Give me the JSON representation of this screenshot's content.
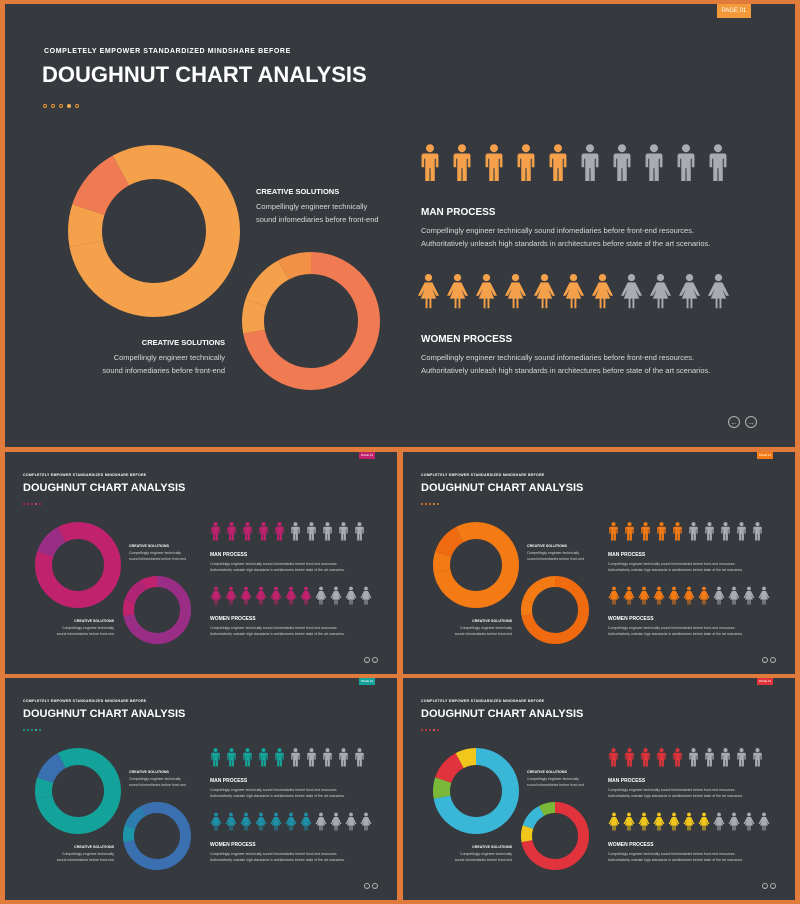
{
  "slides": [
    {
      "kind": "main",
      "page_tag": "PAGE 01",
      "kicker": "COMPLETELY  EMPOWER  STANDARDIZED  MINDSHARE  BEFORE",
      "title": "DOUGHNUT CHART ANALYSIS",
      "colors": {
        "tag": "#f49a3b",
        "dots": [
          "#e8943a",
          "#e8943a",
          "#e8943a",
          "#f2b05a",
          "#e8943a"
        ],
        "men": "#f5a04a",
        "women": "#f5a04a",
        "inactive": "#a8abb0",
        "donut1": [
          "#f5a04a",
          "#f5a04a",
          "#f07a52",
          "#f5a04a"
        ],
        "donut2": [
          "#f07a52",
          "#f5a04a",
          "#f5a04a",
          "#f29046"
        ]
      },
      "label1": {
        "heading": "CREATIVE SOLUTIONS",
        "line1": "Compellingly engineer technically",
        "line2": "sound infomediaries before front-end"
      },
      "label2": {
        "heading": "CREATIVE SOLUTIONS",
        "line1": "Compellingly engineer technically",
        "line2": "sound infomediaries before front-end"
      },
      "man": {
        "heading": "MAN PROCESS",
        "line1": "Compellingly engineer technically sound infomediaries before front-end  resources.",
        "line2": "Authoritatively unleash high standards in architectures before state of the art scenarios.",
        "active": 5,
        "total": 10
      },
      "women": {
        "heading": "WOMEN PROCESS",
        "line1": "Compellingly engineer technically sound infomediaries before front-end  resources.",
        "line2": "Authoritatively unleash high standards in architectures before state of the art scenarios.",
        "active": 7,
        "total": 11
      },
      "nav": {
        "prev": "←",
        "next": "→"
      }
    },
    {
      "kind": "thumb",
      "page_tag": "PAGE 01",
      "kicker": "COMPLETELY  EMPOWER  STANDARDIZED  MINDSHARE  BEFORE",
      "title": "DOUGHNUT CHART ANALYSIS",
      "colors": {
        "tag": "#c0226e",
        "dots": [
          "#c0226e",
          "#c0226e",
          "#c0226e",
          "#e05aa0",
          "#c0226e"
        ],
        "men": "#c0226e",
        "women": "#c0226e",
        "inactive": "#a8abb0",
        "donut1": [
          "#c0226e",
          "#c0226e",
          "#9a2e86",
          "#c0226e"
        ],
        "donut2": [
          "#9a2e86",
          "#c0226e",
          "#b02476",
          "#c0226e"
        ]
      },
      "label1": {
        "heading": "CREATIVE SOLUTIONS",
        "line1": "Compellingly engineer technically",
        "line2": "sound infomediaries before front-end"
      },
      "label2": {
        "heading": "CREATIVE SOLUTIONS",
        "line1": "Compellingly engineer technically",
        "line2": "sound infomediaries before front-end"
      },
      "man": {
        "heading": "MAN PROCESS",
        "line1": "Compellingly engineer technically sound infomediaries before front-end  resources.",
        "line2": "Authoritatively unleash high standards in architectures before state of the art scenarios.",
        "active": 5,
        "total": 10
      },
      "women": {
        "heading": "WOMEN PROCESS",
        "line1": "Compellingly engineer technically sound infomediaries before front-end  resources.",
        "line2": "Authoritatively unleash high standards in architectures before state of the art scenarios.",
        "active": 7,
        "total": 11
      },
      "nav": {
        "prev": "←",
        "next": "→"
      }
    },
    {
      "kind": "thumb",
      "page_tag": "PAGE 01",
      "kicker": "COMPLETELY  EMPOWER  STANDARDIZED  MINDSHARE  BEFORE",
      "title": "DOUGHNUT CHART ANALYSIS",
      "colors": {
        "tag": "#f47a14",
        "dots": [
          "#f47a14",
          "#f47a14",
          "#f47a14",
          "#f7a050",
          "#f47a14"
        ],
        "men": "#f47a14",
        "women": "#f47a14",
        "inactive": "#a8abb0",
        "donut1": [
          "#f47a14",
          "#f47a14",
          "#f06a10",
          "#f47a14"
        ],
        "donut2": [
          "#f06a10",
          "#f47a14",
          "#f47a14",
          "#f47a14"
        ]
      },
      "label1": {
        "heading": "CREATIVE SOLUTIONS",
        "line1": "Compellingly engineer technically",
        "line2": "sound infomediaries before front-end"
      },
      "label2": {
        "heading": "CREATIVE SOLUTIONS",
        "line1": "Compellingly engineer technically",
        "line2": "sound infomediaries before front-end"
      },
      "man": {
        "heading": "MAN PROCESS",
        "line1": "Compellingly engineer technically sound infomediaries before front-end  resources.",
        "line2": "Authoritatively unleash high standards in architectures before state of the art scenarios.",
        "active": 5,
        "total": 10
      },
      "women": {
        "heading": "WOMEN PROCESS",
        "line1": "Compellingly engineer technically sound infomediaries before front-end  resources.",
        "line2": "Authoritatively unleash high standards in architectures before state of the art scenarios.",
        "active": 7,
        "total": 11
      },
      "nav": {
        "prev": "←",
        "next": "→"
      }
    },
    {
      "kind": "thumb",
      "page_tag": "PAGE 01",
      "kicker": "COMPLETELY  EMPOWER  STANDARDIZED  MINDSHARE  BEFORE",
      "title": "DOUGHNUT CHART ANALYSIS",
      "colors": {
        "tag": "#14a39a",
        "dots": [
          "#14a39a",
          "#14a39a",
          "#14a39a",
          "#4ac4bb",
          "#14a39a"
        ],
        "men": "#14a39a",
        "women": "#1e8fa6",
        "inactive": "#a8abb0",
        "donut1": [
          "#14a39a",
          "#14a39a",
          "#3a6fb0",
          "#14a39a"
        ],
        "donut2": [
          "#3a6fb0",
          "#1c96a8",
          "#2e7db0",
          "#3a6fb0"
        ]
      },
      "label1": {
        "heading": "CREATIVE SOLUTIONS",
        "line1": "Compellingly engineer technically",
        "line2": "sound infomediaries before front-end"
      },
      "label2": {
        "heading": "CREATIVE SOLUTIONS",
        "line1": "Compellingly engineer technically",
        "line2": "sound infomediaries before front-end"
      },
      "man": {
        "heading": "MAN PROCESS",
        "line1": "Compellingly engineer technically sound infomediaries before front-end  resources.",
        "line2": "Authoritatively unleash high standards in architectures before state of the art scenarios.",
        "active": 5,
        "total": 10
      },
      "women": {
        "heading": "WOMEN PROCESS",
        "line1": "Compellingly engineer technically sound infomediaries before front-end  resources.",
        "line2": "Authoritatively unleash high standards in architectures before state of the art scenarios.",
        "active": 7,
        "total": 11
      },
      "nav": {
        "prev": "←",
        "next": "→"
      }
    },
    {
      "kind": "thumb",
      "page_tag": "PAGE 01",
      "kicker": "COMPLETELY  EMPOWER  STANDARDIZED  MINDSHARE  BEFORE",
      "title": "DOUGHNUT CHART ANALYSIS",
      "colors": {
        "tag": "#e0333c",
        "dots": [
          "#e0333c",
          "#e0333c",
          "#e0333c",
          "#f06a70",
          "#e0333c"
        ],
        "men": "#e0333c",
        "women": "#f2c71c",
        "inactive": "#a8abb0",
        "donut1": [
          "#3ab6d6",
          "#7ab83a",
          "#e0333c",
          "#f2c71c"
        ],
        "donut2": [
          "#e0333c",
          "#f2c71c",
          "#3ab6d6",
          "#7ab83a"
        ]
      },
      "label1": {
        "heading": "CREATIVE SOLUTIONS",
        "line1": "Compellingly engineer technically",
        "line2": "sound infomediaries before front-end"
      },
      "label2": {
        "heading": "CREATIVE SOLUTIONS",
        "line1": "Compellingly engineer technically",
        "line2": "sound infomediaries before front-end"
      },
      "man": {
        "heading": "MAN PROCESS",
        "line1": "Compellingly engineer technically sound infomediaries before front-end  resources.",
        "line2": "Authoritatively unleash high standards in architectures before state of the art scenarios.",
        "active": 5,
        "total": 10
      },
      "women": {
        "heading": "WOMEN PROCESS",
        "line1": "Compellingly engineer technically sound infomediaries before front-end  resources.",
        "line2": "Authoritatively unleash high standards in architectures before state of the art scenarios.",
        "active": 7,
        "total": 11
      },
      "nav": {
        "prev": "←",
        "next": "→"
      }
    }
  ]
}
